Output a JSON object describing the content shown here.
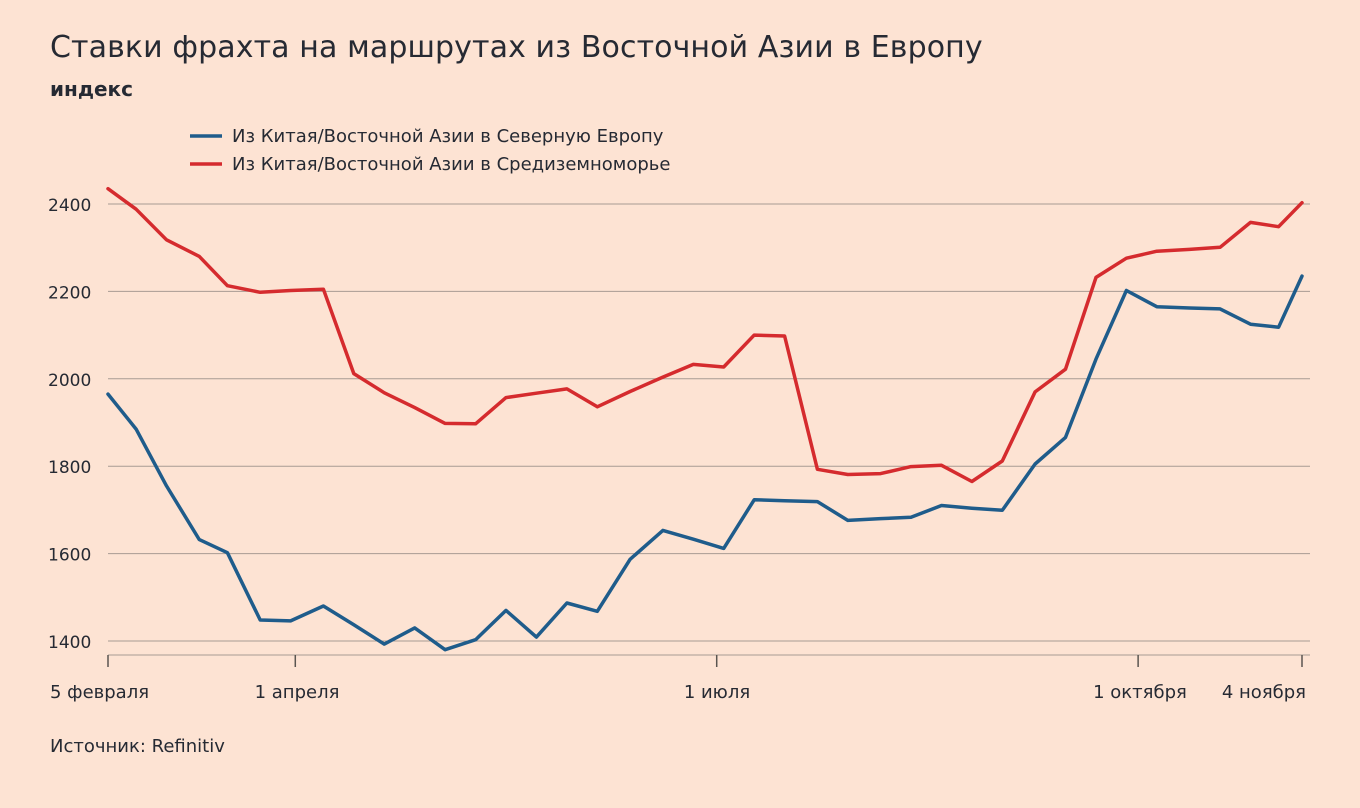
{
  "header": {
    "title": "Ставки фрахта на маршрутах из Восточной Азии в Европу",
    "subtitle": "индекс"
  },
  "footer": {
    "source": "Источник: Refinitiv"
  },
  "colors": {
    "background": "#fde3d3",
    "grid": "#a89b93",
    "text": "#262a33",
    "north_europe": "#1f5c8b",
    "mediterranean": "#d52b2e"
  },
  "chart_data": {
    "type": "line",
    "title": "Ставки фрахта на маршрутах из Восточной Азии в Европу",
    "ylabel": "индекс",
    "xlabel": "",
    "ylim": [
      1370,
      2440
    ],
    "yticks": [
      1400,
      1600,
      1800,
      2000,
      2200,
      2400
    ],
    "grid": true,
    "legend_position": "top-left",
    "x_tick_labels": [
      "5 февраля",
      "1 апреля",
      "1 июля",
      "1 октября",
      "4 ноября"
    ],
    "x_ticks": [
      0,
      8,
      26,
      44,
      51
    ],
    "x": [
      0,
      1.2,
      2.5,
      3.9,
      5.1,
      6.5,
      7.8,
      9.2,
      10.5,
      11.8,
      13.1,
      14.4,
      15.7,
      17,
      18.3,
      19.6,
      20.9,
      22.3,
      23.7,
      25,
      26.3,
      27.6,
      28.9,
      30.3,
      31.6,
      33,
      34.3,
      35.6,
      36.9,
      38.2,
      39.6,
      40.9,
      42.2,
      43.5,
      44.8,
      46.2,
      47.5,
      48.8,
      50,
      51
    ],
    "series": [
      {
        "name": "Из Китая/Восточной Азии в Северную Европу",
        "color": "#1f5c8b",
        "values": [
          1965,
          1885,
          1755,
          1632,
          1602,
          1448,
          1446,
          1480,
          1437,
          1393,
          1430,
          1380,
          1403,
          1470,
          1409,
          1487,
          1468,
          1587,
          1653,
          1633,
          1612,
          1723,
          1721,
          1719,
          1676,
          1680,
          1683,
          1710,
          1704,
          1699,
          1805,
          1866,
          2045,
          2202,
          2165,
          2162,
          2160,
          2125,
          2118,
          2235
        ]
      },
      {
        "name": "Из Китая/Восточной Азии в Средиземноморье",
        "color": "#d52b2e",
        "values": [
          2435,
          2388,
          2318,
          2280,
          2213,
          2198,
          2202,
          2205,
          2012,
          1968,
          1934,
          1898,
          1897,
          1957,
          1967,
          1977,
          1936,
          1971,
          2004,
          2033,
          2027,
          2100,
          2098,
          1793,
          1781,
          1783,
          1799,
          1802,
          1765,
          1812,
          1970,
          2022,
          2232,
          2276,
          2292,
          2296,
          2301,
          2358,
          2348,
          2403
        ]
      }
    ]
  }
}
